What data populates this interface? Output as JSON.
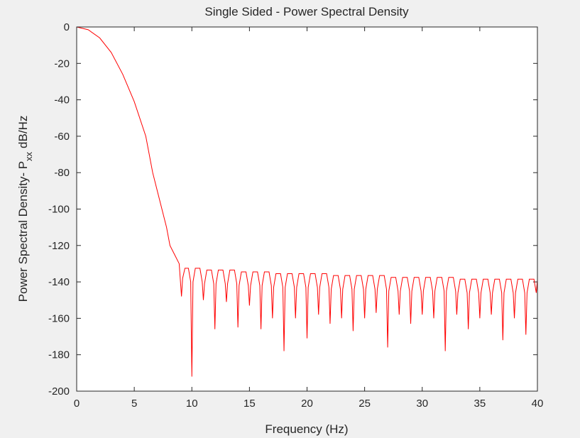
{
  "chart_data": {
    "type": "line",
    "title": "Single Sided - Power Spectral Density",
    "xlabel": "Frequency (Hz)",
    "ylabel": [
      "Power Spectral Density- P",
      "xx",
      "dB/Hz"
    ],
    "xlim": [
      0,
      40
    ],
    "ylim": [
      -200,
      0
    ],
    "xticks": [
      0,
      5,
      10,
      15,
      20,
      25,
      30,
      35,
      40
    ],
    "yticks": [
      0,
      -20,
      -40,
      -60,
      -80,
      -100,
      -120,
      -140,
      -160,
      -180,
      -200
    ],
    "grid": false,
    "series": [
      {
        "color": "#ff0000",
        "x": [
          0,
          1,
          2,
          3,
          4,
          5,
          6,
          6.6,
          7,
          7.4,
          7.8,
          8.1,
          8.5,
          8.9,
          9.1,
          9.2,
          9.4,
          9.7,
          9.9,
          10,
          10.1,
          10.3,
          10.7,
          10.9,
          11,
          11.1,
          11.3,
          11.7,
          11.9,
          12,
          12.1,
          12.3,
          12.7,
          12.9,
          13,
          13.1,
          13.3,
          13.7,
          13.9,
          14,
          14.1,
          14.3,
          14.7,
          14.9,
          15,
          15.1,
          15.3,
          15.7,
          15.9,
          16,
          16.1,
          16.3,
          16.7,
          16.9,
          17,
          17.1,
          17.3,
          17.7,
          17.9,
          18,
          18.1,
          18.3,
          18.7,
          18.9,
          19,
          19.1,
          19.3,
          19.7,
          19.9,
          20,
          20.1,
          20.3,
          20.7,
          20.9,
          21,
          21.1,
          21.3,
          21.7,
          21.9,
          22,
          22.1,
          22.3,
          22.7,
          22.9,
          23,
          23.1,
          23.3,
          23.7,
          23.9,
          24,
          24.1,
          24.3,
          24.7,
          24.9,
          25,
          25.1,
          25.3,
          25.7,
          25.9,
          26,
          26.1,
          26.3,
          26.7,
          26.9,
          27,
          27.1,
          27.3,
          27.7,
          27.9,
          28,
          28.1,
          28.3,
          28.7,
          28.9,
          29,
          29.1,
          29.3,
          29.7,
          29.9,
          30,
          30.1,
          30.3,
          30.7,
          30.9,
          31,
          31.1,
          31.3,
          31.7,
          31.9,
          32,
          32.1,
          32.3,
          32.7,
          32.9,
          33,
          33.1,
          33.3,
          33.7,
          33.9,
          34,
          34.1,
          34.3,
          34.7,
          34.9,
          35,
          35.1,
          35.3,
          35.7,
          35.9,
          36,
          36.1,
          36.3,
          36.7,
          36.9,
          37,
          37.1,
          37.3,
          37.7,
          37.9,
          38,
          38.1,
          38.3,
          38.7,
          38.9,
          39,
          39.1,
          39.3,
          39.7,
          39.9,
          40
        ],
        "values": [
          0,
          -1.5,
          -6,
          -14,
          -26,
          -41,
          -60,
          -80,
          -90,
          -100,
          -110,
          -120,
          -125,
          -130,
          -148,
          -138,
          -132.5,
          -132.5,
          -140,
          -192,
          -140,
          -132.5,
          -132.5,
          -140,
          -150,
          -141,
          -133.5,
          -133.5,
          -141,
          -166,
          -141,
          -133.5,
          -133.5,
          -141,
          -151,
          -141,
          -133.5,
          -133.5,
          -141,
          -165,
          -142,
          -134.5,
          -134.5,
          -142,
          -153,
          -142,
          -134.5,
          -134.5,
          -142,
          -166,
          -142,
          -134.5,
          -134.5,
          -142,
          -160,
          -143,
          -135.5,
          -135.5,
          -143,
          -178,
          -143,
          -135.5,
          -135.5,
          -143,
          -160,
          -143,
          -135.5,
          -135.5,
          -143,
          -171,
          -143,
          -135.5,
          -135.5,
          -143,
          -158,
          -143,
          -135.5,
          -135.5,
          -143,
          -163,
          -144,
          -136.5,
          -136.5,
          -144,
          -160,
          -144,
          -136.5,
          -136.5,
          -144,
          -167,
          -144,
          -136.5,
          -136.5,
          -144,
          -160,
          -144,
          -136.5,
          -136.5,
          -144,
          -157,
          -144,
          -136.5,
          -136.5,
          -144,
          -176,
          -145,
          -137.5,
          -137.5,
          -145,
          -158,
          -145,
          -137.5,
          -137.5,
          -145,
          -163,
          -145,
          -137.5,
          -137.5,
          -145,
          -158,
          -145,
          -137.5,
          -137.5,
          -145,
          -160,
          -145,
          -137.5,
          -137.5,
          -145,
          -178,
          -145,
          -137.5,
          -137.5,
          -145,
          -158,
          -146,
          -138.5,
          -138.5,
          -146,
          -166,
          -146,
          -138.5,
          -138.5,
          -146,
          -160,
          -146,
          -138.5,
          -138.5,
          -146,
          -158,
          -146,
          -138.5,
          -138.5,
          -146,
          -172,
          -146,
          -138.5,
          -138.5,
          -146,
          -160,
          -146,
          -138.5,
          -138.5,
          -146,
          -169,
          -146,
          -138.5,
          -138.5,
          -146,
          -139
        ]
      }
    ]
  }
}
